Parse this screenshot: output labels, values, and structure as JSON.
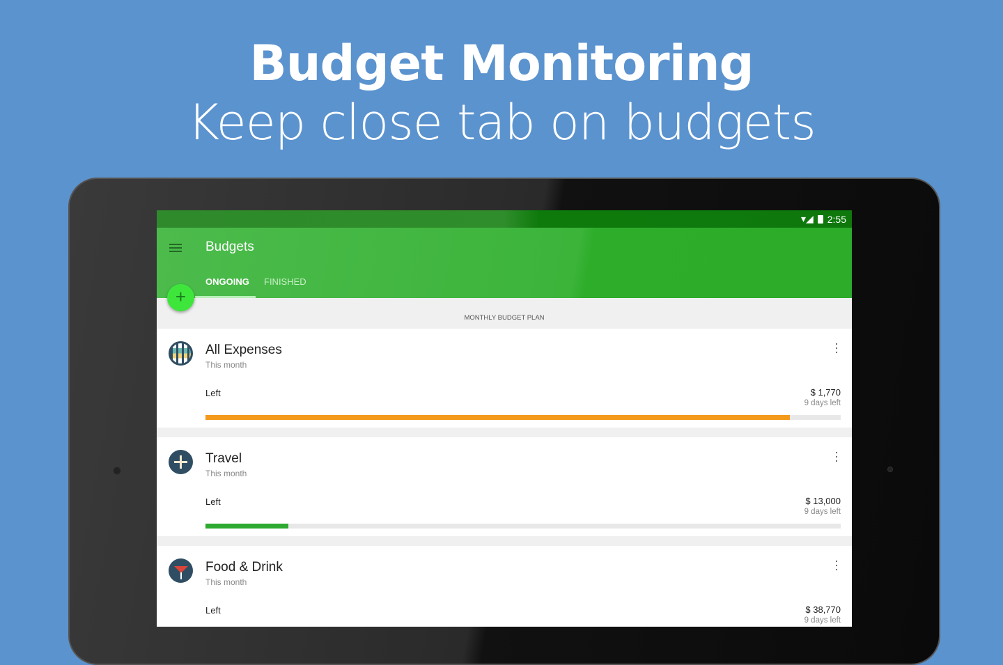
{
  "headline": "Budget Monitoring",
  "subheadline": "Keep close tab on budgets",
  "status_bar": {
    "time": "2:55"
  },
  "app": {
    "title": "Budgets",
    "tabs": [
      {
        "label": "ONGOING",
        "active": true
      },
      {
        "label": "FINISHED",
        "active": false
      }
    ],
    "section": "MONTHLY BUDGET PLAN"
  },
  "colors": {
    "background": "#5b93cf",
    "appbar": "#3cb43a",
    "fab": "#3ee63c"
  },
  "budgets": [
    {
      "name": "All Expenses",
      "period": "This month",
      "left_label": "Left",
      "amount": "$ 1,770",
      "days": "9 days left",
      "progress": 0.92,
      "color": "#f39a1d",
      "icon": "globe-icon"
    },
    {
      "name": "Travel",
      "period": "This month",
      "left_label": "Left",
      "amount": "$ 13,000",
      "days": "9 days left",
      "progress": 0.13,
      "color": "#2eaa30",
      "icon": "airplane-icon"
    },
    {
      "name": "Food & Drink",
      "period": "This month",
      "left_label": "Left",
      "amount": "$ 38,770",
      "days": "9 days left",
      "icon": "cocktail-icon"
    }
  ]
}
